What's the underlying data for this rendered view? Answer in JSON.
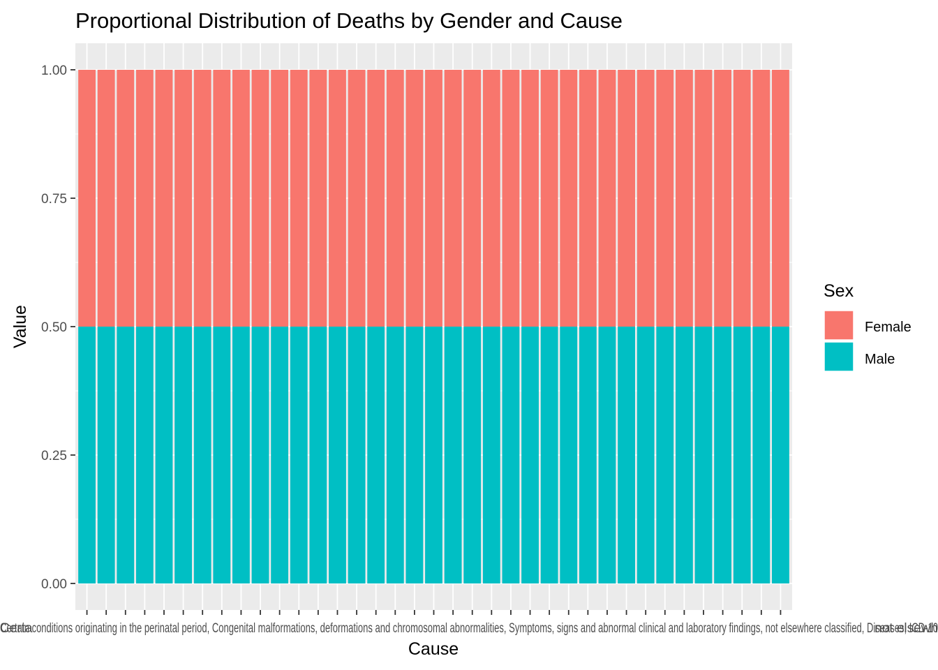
{
  "chart_data": {
    "type": "bar",
    "stacked": true,
    "normalized": true,
    "title": "Proportional Distribution of Deaths by Gender and Cause",
    "xlabel": "Cause",
    "ylabel": "Value",
    "ylim": [
      0,
      1
    ],
    "yticks": [
      "0.00",
      "0.25",
      "0.50",
      "0.75",
      "1.00"
    ],
    "ytick_values": [
      0,
      0.25,
      0.5,
      0.75,
      1.0
    ],
    "grid": true,
    "legend": {
      "title": "Sex",
      "position": "right",
      "entries": [
        "Female",
        "Male"
      ]
    },
    "category_count": 37,
    "category_tick_labels_overlapping": "Certain conditions originating in the perinatal period, Congenital malformations, deformations and chromosomal abnormalities, Symptoms, signs and abnormal clinical and laboratory findings, not elsewhere classified, Diseases, ICD-10",
    "first_tick_label_fragment": "Certa",
    "last_tick_label_fragment": "not elsewh",
    "series": [
      {
        "name": "Female",
        "color": "#F8766D",
        "value_each_category": 0.5
      },
      {
        "name": "Male",
        "color": "#00BFC4",
        "value_each_category": 0.5
      }
    ]
  }
}
